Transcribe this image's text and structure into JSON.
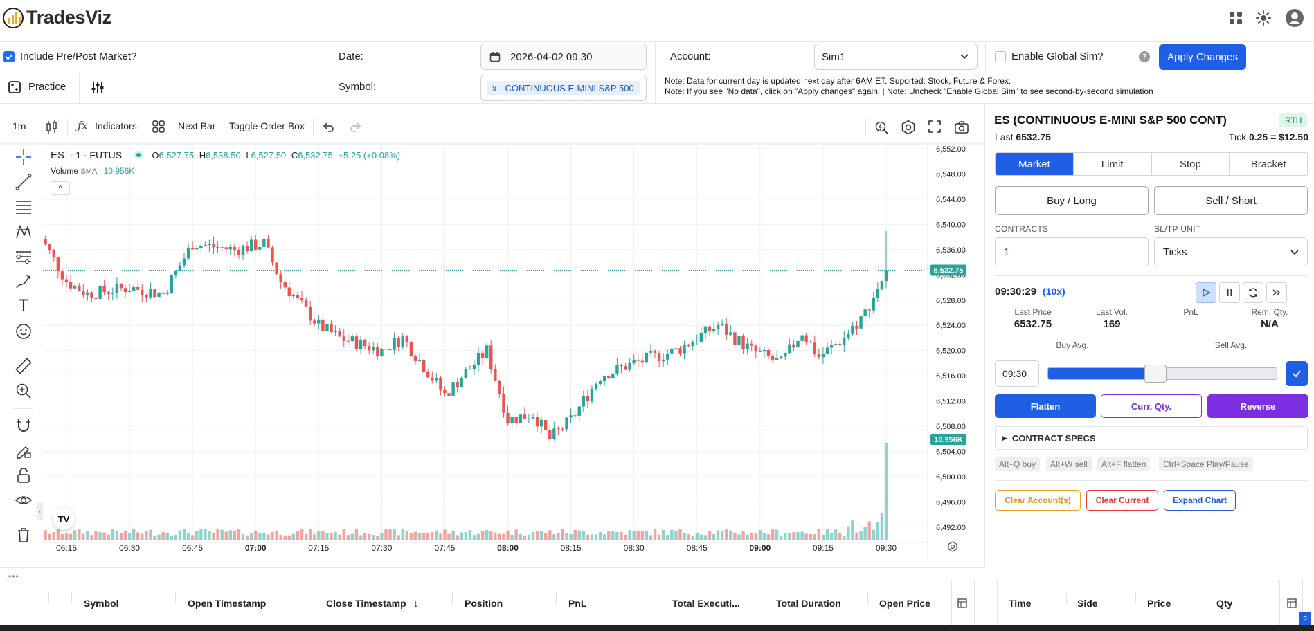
{
  "header": {
    "logo_text": "TradesViz"
  },
  "settings": {
    "pre_post_label": "Include Pre/Post Market?",
    "date_label": "Date:",
    "date_value": "2026-04-02 09:30",
    "account_label": "Account:",
    "account_value": "Sim1",
    "global_sim_label": "Enable Global Sim?",
    "apply_label": "Apply Changes",
    "practice_label": "Practice",
    "symbol_label": "Symbol:",
    "symbol_chip_x": "x",
    "symbol_chip": "CONTINUOUS E-MINI S&P 500",
    "note1": "Note: Data for current day is updated next day after 6AM ET. Suported: Stock, Future & Forex.",
    "note2": "Note: If you see \"No data\", click on \"Apply changes\" again. | Note: Uncheck \"Enable Global Sim\" to see second-by-second simulation"
  },
  "chart_toolbar": {
    "interval": "1m",
    "indicators": "Indicators",
    "next_bar": "Next Bar",
    "toggle_order_box": "Toggle Order Box"
  },
  "legend": {
    "symbol": "ES",
    "meta": "· 1 · FUTUS",
    "o_label": "O",
    "o": "6,527.75",
    "h_label": "H",
    "h": "6,538.50",
    "l_label": "L",
    "l": "6,527.50",
    "c_label": "C",
    "c": "6,532.75",
    "change": "+5.25 (+0.08%)",
    "vol_label": "Volume",
    "vol_sma": "SMA",
    "vol_value": "10.956K",
    "collapse": "^",
    "tv": "TV"
  },
  "chart_data": {
    "type": "candlestick",
    "y_ticks": [
      "6,552.00",
      "6,548.00",
      "6,544.00",
      "6,540.00",
      "6,536.00",
      "6,532.00",
      "6,528.00",
      "6,524.00",
      "6,520.00",
      "6,516.00",
      "6,512.00",
      "6,508.00",
      "6,504.00",
      "6,500.00",
      "6,496.00",
      "6,492.00"
    ],
    "ylim": [
      6490,
      6553
    ],
    "x_ticks": [
      "06:15",
      "06:30",
      "06:45",
      "07:00",
      "07:15",
      "07:30",
      "07:45",
      "08:00",
      "08:15",
      "08:30",
      "08:45",
      "09:00",
      "09:15",
      "09:30"
    ],
    "x_bold": [
      "07:00",
      "08:00",
      "09:00"
    ],
    "last_price_label": "6,532.75",
    "volume_label": "10.956K",
    "path_keypoints": [
      {
        "t": "06:08",
        "p": 6539
      },
      {
        "t": "06:15",
        "p": 6531
      },
      {
        "t": "06:20",
        "p": 6529
      },
      {
        "t": "06:30",
        "p": 6530
      },
      {
        "t": "06:38",
        "p": 6529
      },
      {
        "t": "06:45",
        "p": 6537
      },
      {
        "t": "06:55",
        "p": 6536
      },
      {
        "t": "07:02",
        "p": 6537
      },
      {
        "t": "07:06",
        "p": 6531
      },
      {
        "t": "07:15",
        "p": 6524
      },
      {
        "t": "07:20",
        "p": 6522
      },
      {
        "t": "07:30",
        "p": 6520
      },
      {
        "t": "07:35",
        "p": 6522
      },
      {
        "t": "07:45",
        "p": 6513
      },
      {
        "t": "07:55",
        "p": 6520
      },
      {
        "t": "08:00",
        "p": 6509
      },
      {
        "t": "08:06",
        "p": 6510
      },
      {
        "t": "08:10",
        "p": 6506
      },
      {
        "t": "08:15",
        "p": 6509
      },
      {
        "t": "08:22",
        "p": 6516
      },
      {
        "t": "08:30",
        "p": 6518
      },
      {
        "t": "08:40",
        "p": 6520
      },
      {
        "t": "08:50",
        "p": 6524
      },
      {
        "t": "08:58",
        "p": 6520
      },
      {
        "t": "09:05",
        "p": 6518
      },
      {
        "t": "09:10",
        "p": 6523
      },
      {
        "t": "09:14",
        "p": 6519
      },
      {
        "t": "09:20",
        "p": 6522
      },
      {
        "t": "09:25",
        "p": 6526
      },
      {
        "t": "09:28",
        "p": 6530
      },
      {
        "t": "09:30",
        "p": 6532.75
      }
    ]
  },
  "order_panel": {
    "title": "ES (CONTINUOUS E-MINI S&P 500 CONT)",
    "session_badge": "RTH",
    "last_label": "Last",
    "last_value": "6532.75",
    "tick_label": "Tick",
    "tick_value": "0.25 = $12.50",
    "tabs": [
      "Market",
      "Limit",
      "Stop",
      "Bracket"
    ],
    "buy_label": "Buy / Long",
    "sell_label": "Sell / Short",
    "contracts_label": "CONTRACTS",
    "contracts_value": "1",
    "unit_label": "SL/TP UNIT",
    "unit_value": "Ticks",
    "sim_time": "09:30:29",
    "sim_speed": "(10x)",
    "stats": [
      {
        "label": "Last Price",
        "value": "6532.75"
      },
      {
        "label": "Last Vol.",
        "value": "169"
      },
      {
        "label": "PnL",
        "value": ""
      },
      {
        "label": "Rem. Qty.",
        "value": "N/A"
      }
    ],
    "buy_avg_label": "Buy Avg.",
    "sell_avg_label": "Sell Avg.",
    "slider_time": "09:30",
    "slider_progress": 0.44,
    "flatten_label": "Flatten",
    "curr_qty_label": "Curr. Qty.",
    "reverse_label": "Reverse",
    "contract_specs_label": "CONTRACT SPECS",
    "shortcuts": [
      "Alt+Q buy",
      "Alt+W sell",
      "Alt+F flatten",
      "Ctrl+Space Play/Pause"
    ],
    "clear_accounts_label": "Clear Account(s)",
    "clear_current_label": "Clear Current",
    "expand_chart_label": "Expand Chart"
  },
  "trades_table": {
    "columns": [
      "Symbol",
      "Open Timestamp",
      "Close Timestamp",
      "Position",
      "PnL",
      "Total Executi...",
      "Total Duration",
      "Open Price"
    ],
    "sort_arrow": "↓"
  },
  "exec_table": {
    "columns": [
      "Time",
      "Side",
      "Price",
      "Qty"
    ]
  },
  "colors": {
    "up": "#26a69a",
    "down": "#ef5350",
    "accent": "#1e5fe6",
    "purple": "#7b2fe0",
    "orange": "#f0a020",
    "red": "#e53935"
  }
}
